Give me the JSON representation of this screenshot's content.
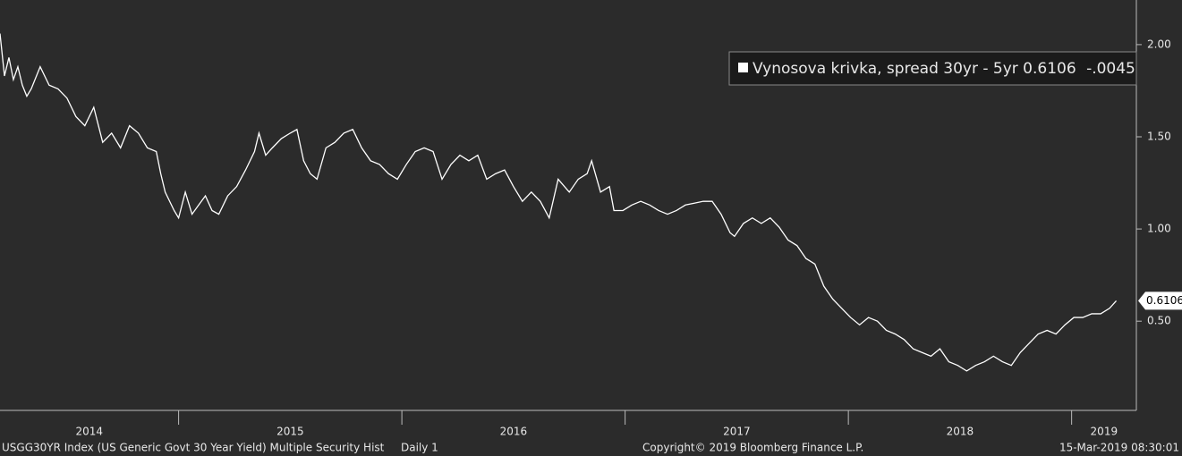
{
  "chart_data": {
    "type": "line",
    "series": [
      {
        "name": "Vynosova krivka, spread 30yr - 5yr",
        "color": "#ffffff",
        "x": [
          2014.2,
          2014.22,
          2014.24,
          2014.26,
          2014.28,
          2014.3,
          2014.32,
          2014.34,
          2014.38,
          2014.42,
          2014.46,
          2014.5,
          2014.54,
          2014.58,
          2014.62,
          2014.66,
          2014.7,
          2014.74,
          2014.78,
          2014.82,
          2014.86,
          2014.9,
          2014.92,
          2014.94,
          2014.98,
          2015.0,
          2015.03,
          2015.06,
          2015.09,
          2015.12,
          2015.15,
          2015.18,
          2015.22,
          2015.26,
          2015.3,
          2015.34,
          2015.36,
          2015.39,
          2015.42,
          2015.46,
          2015.5,
          2015.53,
          2015.56,
          2015.59,
          2015.62,
          2015.66,
          2015.7,
          2015.74,
          2015.78,
          2015.82,
          2015.86,
          2015.9,
          2015.94,
          2015.98,
          2016.02,
          2016.06,
          2016.1,
          2016.14,
          2016.18,
          2016.22,
          2016.26,
          2016.3,
          2016.34,
          2016.38,
          2016.42,
          2016.46,
          2016.5,
          2016.54,
          2016.58,
          2016.62,
          2016.66,
          2016.7,
          2016.75,
          2016.79,
          2016.83,
          2016.85,
          2016.89,
          2016.93,
          2016.95,
          2016.99,
          2017.03,
          2017.07,
          2017.11,
          2017.15,
          2017.19,
          2017.23,
          2017.27,
          2017.31,
          2017.35,
          2017.39,
          2017.43,
          2017.47,
          2017.49,
          2017.53,
          2017.57,
          2017.61,
          2017.65,
          2017.69,
          2017.73,
          2017.77,
          2017.81,
          2017.85,
          2017.89,
          2017.93,
          2017.97,
          2018.01,
          2018.05,
          2018.09,
          2018.13,
          2018.17,
          2018.21,
          2018.25,
          2018.29,
          2018.33,
          2018.37,
          2018.41,
          2018.45,
          2018.49,
          2018.53,
          2018.57,
          2018.61,
          2018.65,
          2018.69,
          2018.73,
          2018.77,
          2018.81,
          2018.85,
          2018.89,
          2018.93,
          2018.97,
          2019.01,
          2019.05,
          2019.09,
          2019.13,
          2019.17,
          2019.2
        ],
        "values": [
          2.06,
          1.83,
          1.93,
          1.81,
          1.88,
          1.78,
          1.72,
          1.76,
          1.88,
          1.78,
          1.76,
          1.71,
          1.61,
          1.56,
          1.66,
          1.47,
          1.52,
          1.44,
          1.56,
          1.52,
          1.44,
          1.42,
          1.3,
          1.2,
          1.1,
          1.06,
          1.2,
          1.08,
          1.13,
          1.18,
          1.1,
          1.08,
          1.18,
          1.23,
          1.32,
          1.42,
          1.52,
          1.4,
          1.44,
          1.49,
          1.52,
          1.54,
          1.37,
          1.3,
          1.27,
          1.44,
          1.47,
          1.52,
          1.54,
          1.44,
          1.37,
          1.35,
          1.3,
          1.27,
          1.35,
          1.42,
          1.44,
          1.42,
          1.27,
          1.35,
          1.4,
          1.37,
          1.4,
          1.27,
          1.3,
          1.32,
          1.23,
          1.15,
          1.2,
          1.15,
          1.06,
          1.27,
          1.2,
          1.27,
          1.3,
          1.37,
          1.2,
          1.23,
          1.1,
          1.1,
          1.13,
          1.15,
          1.13,
          1.1,
          1.08,
          1.1,
          1.13,
          1.14,
          1.15,
          1.15,
          1.08,
          0.98,
          0.96,
          1.03,
          1.06,
          1.03,
          1.06,
          1.01,
          0.94,
          0.91,
          0.84,
          0.81,
          0.69,
          0.62,
          0.57,
          0.52,
          0.48,
          0.52,
          0.5,
          0.45,
          0.43,
          0.4,
          0.35,
          0.33,
          0.31,
          0.35,
          0.28,
          0.26,
          0.23,
          0.26,
          0.28,
          0.31,
          0.28,
          0.26,
          0.33,
          0.38,
          0.43,
          0.45,
          0.43,
          0.48,
          0.52,
          0.52,
          0.54,
          0.54,
          0.57,
          0.6106
        ]
      }
    ],
    "legend_change": "-.0045",
    "xlim": [
      2014.2,
      2019.29
    ],
    "xticks": [
      2014,
      2015,
      2016,
      2017,
      2018,
      2019
    ],
    "ylim": [
      0.016,
      2.242
    ],
    "yticks": [
      {
        "value": 0.5,
        "label": "0.50"
      },
      {
        "value": 1.0,
        "label": "1.00"
      },
      {
        "value": 1.5,
        "label": "1.50"
      },
      {
        "value": 2.0,
        "label": "2.00"
      }
    ],
    "footer": {
      "security": "USGG30YR Index (US Generic Govt 30 Year Yield) Multiple Security Hist",
      "period": "Daily 1",
      "copyright": "Copyright© 2019 Bloomberg Finance L.P.",
      "timestamp": "15-Mar-2019 08:30:01"
    }
  }
}
